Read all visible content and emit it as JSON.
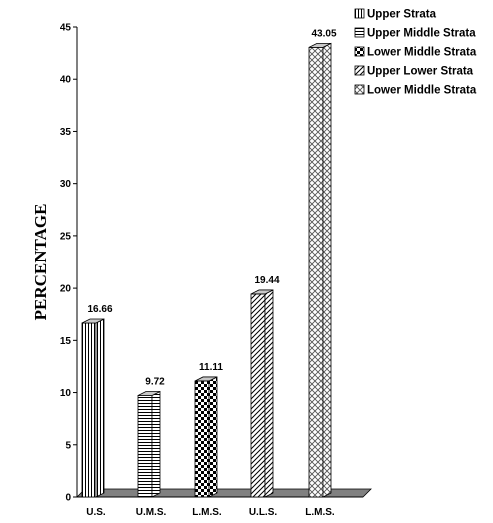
{
  "chart_data": {
    "type": "bar",
    "categories": [
      "U.S.",
      "U.M.S.",
      "L.M.S.",
      "U.L.S.",
      "L.M.S."
    ],
    "values": [
      16.66,
      9.72,
      11.11,
      19.44,
      43.05
    ],
    "data_labels": [
      "16.66",
      "9.72",
      "11.11",
      "19.44",
      "43.05"
    ],
    "ylabel": "PERCENTAGE",
    "xlabel": "",
    "title": "",
    "ylim": [
      0,
      45
    ],
    "yticks": [
      "0",
      "5",
      "10",
      "15",
      "20",
      "25",
      "30",
      "35",
      "40",
      "45"
    ],
    "grid": false,
    "legend_position": "top-right",
    "legend": [
      {
        "label": "Upper Strata",
        "pattern": "vertical-lines"
      },
      {
        "label": "Upper Middle Strata",
        "pattern": "horizontal-lines"
      },
      {
        "label": "Lower Middle Strata",
        "pattern": "checker"
      },
      {
        "label": "Upper Lower Strata",
        "pattern": "diagonal-lines"
      },
      {
        "label": "Lower Middle Strata",
        "pattern": "crosshatch"
      }
    ],
    "three_d": true,
    "colors": {
      "bar_fill": "#ffffff",
      "bar_stroke": "#000000",
      "floor": "#808080",
      "top": "#c8c8c8"
    }
  }
}
